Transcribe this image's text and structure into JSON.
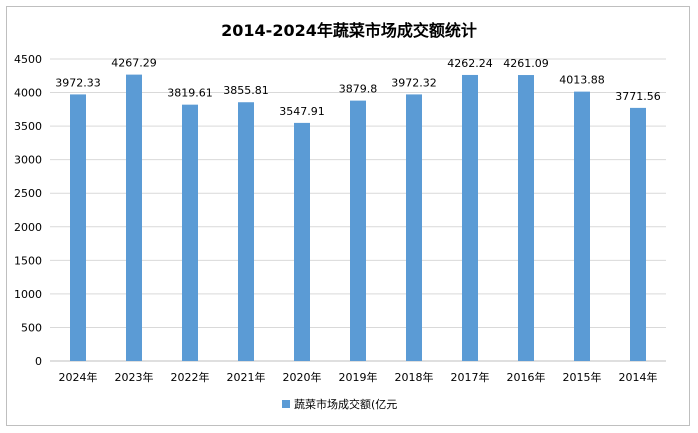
{
  "chart_data": {
    "type": "bar",
    "title": "2014-2024年蔬菜市场成交额统计",
    "categories": [
      "2024年",
      "2023年",
      "2022年",
      "2021年",
      "2020年",
      "2019年",
      "2018年",
      "2017年",
      "2016年",
      "2015年",
      "2014年"
    ],
    "series": [
      {
        "name": "蔬菜市场成交额(亿元",
        "values": [
          3972.33,
          4267.29,
          3819.61,
          3855.81,
          3547.91,
          3879.8,
          3972.32,
          4262.24,
          4261.09,
          4013.88,
          3771.56
        ],
        "labels": [
          "3972.33",
          "4267.29",
          "3819.61",
          "3855.81",
          "3547.91",
          "3879.8",
          "3972.32",
          "4262.24",
          "4261.09",
          "4013.88",
          "3771.56"
        ],
        "color": "#5b9bd5"
      }
    ],
    "y_ticks": [
      "0",
      "500",
      "1000",
      "1500",
      "2000",
      "2500",
      "3000",
      "3500",
      "4000",
      "4500"
    ],
    "ylim": [
      0,
      4500
    ],
    "grid": true,
    "legend_position": "bottom",
    "xlabel": "",
    "ylabel": ""
  },
  "colors": {
    "gridline": "#d9d9d9",
    "text": "#000000",
    "axis": "#bfbfbf"
  }
}
